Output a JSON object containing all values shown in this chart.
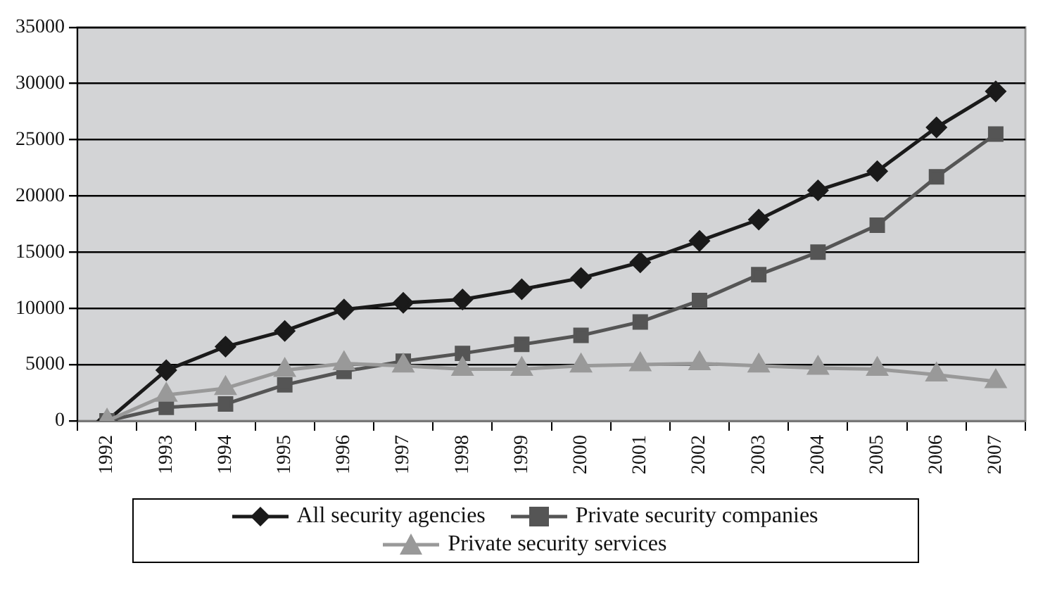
{
  "chart_data": {
    "type": "line",
    "categories": [
      "1992",
      "1993",
      "1994",
      "1995",
      "1996",
      "1997",
      "1998",
      "1999",
      "2000",
      "2001",
      "2002",
      "2003",
      "2004",
      "2005",
      "2006",
      "2007"
    ],
    "series": [
      {
        "name": "All security agencies",
        "color": "#1a1a1a",
        "marker": "diamond",
        "values": [
          0,
          4500,
          6600,
          8000,
          9900,
          10500,
          10800,
          11700,
          12700,
          14100,
          16000,
          17900,
          20500,
          22200,
          26100,
          29300
        ]
      },
      {
        "name": "Private security companies",
        "color": "#555555",
        "marker": "square",
        "values": [
          0,
          1200,
          1500,
          3200,
          4400,
          5300,
          6000,
          6800,
          7600,
          8800,
          10700,
          13000,
          15000,
          17400,
          21700,
          25500
        ]
      },
      {
        "name": "Private security services",
        "color": "#999999",
        "marker": "triangle",
        "values": [
          0,
          2300,
          2900,
          4500,
          5100,
          4900,
          4600,
          4600,
          4900,
          5000,
          5100,
          4900,
          4700,
          4600,
          4100,
          3500
        ]
      }
    ],
    "ylim": [
      0,
      35000
    ],
    "yticks": [
      0,
      5000,
      10000,
      15000,
      20000,
      25000,
      30000,
      35000
    ],
    "grid": "y",
    "legend": "bottom",
    "line_style": "solid"
  }
}
